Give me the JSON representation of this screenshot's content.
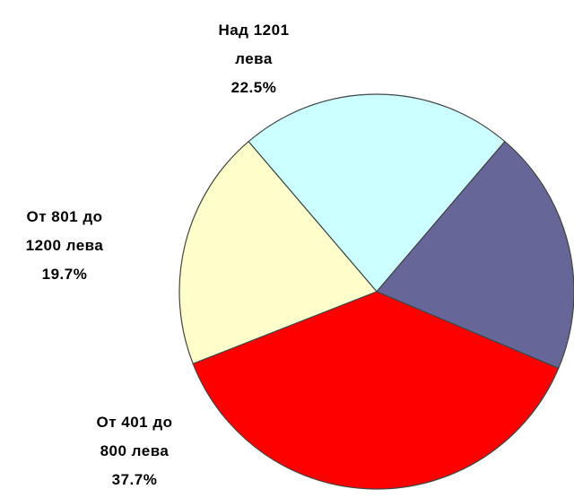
{
  "chart_data": {
    "type": "pie",
    "categories": [
      "Над 1201 лева",
      null,
      "От 401 до 800 лева",
      "От 801 до 1200 лева"
    ],
    "values": [
      22.5,
      20.1,
      37.7,
      19.7
    ],
    "value_labels": [
      "22.5%",
      null,
      "37.7%",
      "19.7%"
    ],
    "colors": [
      "#ccffff",
      "#666699",
      "#ff0000",
      "#ffffcc"
    ]
  }
}
